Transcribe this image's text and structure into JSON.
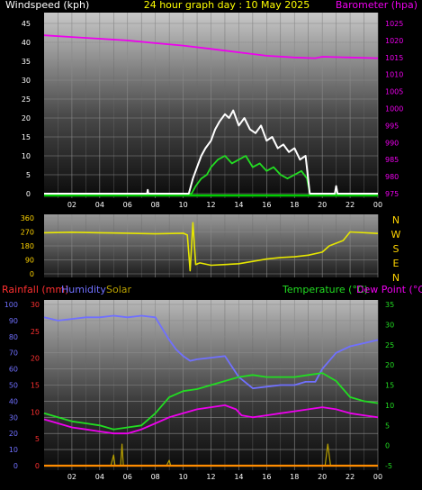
{
  "header": {
    "left_title": "Windspeed (kph)",
    "center_title": "24 hour graph day : 10 May 2025",
    "right_title": "Barometer (hpa)"
  },
  "colors": {
    "windspeed_gust": "#ffffff",
    "windspeed_avg": "#22dd22",
    "barometer": "#ee00ee",
    "wind_dir": "#e6e600",
    "rainfall": "#ff3030",
    "humidity": "#7070ff",
    "solar": "#b8a000",
    "temperature": "#22dd22",
    "dew_point": "#ee00ee",
    "axis_yellow": "#ffd400",
    "baseline_green": "#00cc00",
    "baseline_orange": "#ff8c00"
  },
  "chart_data": [
    {
      "type": "line",
      "x_ticks": [
        "02",
        "04",
        "06",
        "08",
        "10",
        "12",
        "14",
        "16",
        "18",
        "20",
        "22",
        "00"
      ],
      "left_axis": {
        "ticks": [
          0,
          5,
          10,
          15,
          20,
          25,
          30,
          35,
          40,
          45
        ],
        "ylim": [
          0,
          45
        ]
      },
      "right_axis": {
        "ticks": [
          975,
          980,
          985,
          990,
          995,
          1000,
          1005,
          1010,
          1015,
          1020,
          1025
        ],
        "ylim": [
          975,
          1025
        ]
      },
      "series": [
        {
          "key": "barometer",
          "axis": "right",
          "points": [
            [
              0,
              1021.5
            ],
            [
              2,
              1021
            ],
            [
              4,
              1020.5
            ],
            [
              6,
              1020
            ],
            [
              8,
              1019.2
            ],
            [
              10,
              1018.5
            ],
            [
              12,
              1017.5
            ],
            [
              14,
              1016.5
            ],
            [
              16,
              1015.5
            ],
            [
              18,
              1015
            ],
            [
              19.5,
              1014.8
            ],
            [
              20,
              1015.2
            ],
            [
              22,
              1015
            ],
            [
              24,
              1014.8
            ]
          ]
        },
        {
          "key": "windspeed_avg",
          "axis": "left",
          "points": [
            [
              0,
              0
            ],
            [
              10.6,
              0
            ],
            [
              10.9,
              2
            ],
            [
              11.3,
              4
            ],
            [
              11.7,
              5
            ],
            [
              12,
              7
            ],
            [
              12.5,
              9
            ],
            [
              13,
              10
            ],
            [
              13.5,
              8
            ],
            [
              14,
              9
            ],
            [
              14.5,
              10
            ],
            [
              15,
              7
            ],
            [
              15.5,
              8
            ],
            [
              16,
              6
            ],
            [
              16.5,
              7
            ],
            [
              17,
              5
            ],
            [
              17.5,
              4
            ],
            [
              18,
              5
            ],
            [
              18.5,
              6
            ],
            [
              18.9,
              4
            ],
            [
              19.1,
              0
            ],
            [
              24,
              0
            ]
          ]
        },
        {
          "key": "windspeed_gust",
          "axis": "left",
          "points": [
            [
              0,
              0
            ],
            [
              7.4,
              0
            ],
            [
              7.45,
              1
            ],
            [
              7.5,
              0
            ],
            [
              10.4,
              0
            ],
            [
              10.7,
              4
            ],
            [
              11,
              7
            ],
            [
              11.3,
              10
            ],
            [
              11.6,
              12
            ],
            [
              12,
              14
            ],
            [
              12.3,
              17
            ],
            [
              12.6,
              19
            ],
            [
              13,
              21
            ],
            [
              13.3,
              20
            ],
            [
              13.6,
              22
            ],
            [
              14,
              18
            ],
            [
              14.4,
              20
            ],
            [
              14.8,
              17
            ],
            [
              15.2,
              16
            ],
            [
              15.6,
              18
            ],
            [
              16,
              14
            ],
            [
              16.4,
              15
            ],
            [
              16.8,
              12
            ],
            [
              17.2,
              13
            ],
            [
              17.6,
              11
            ],
            [
              18,
              12
            ],
            [
              18.4,
              9
            ],
            [
              18.8,
              10
            ],
            [
              19.1,
              0
            ],
            [
              20.9,
              0
            ],
            [
              21,
              2
            ],
            [
              21.1,
              0
            ],
            [
              24,
              0
            ]
          ]
        }
      ]
    },
    {
      "type": "line",
      "x_ticks": [
        "02",
        "04",
        "06",
        "08",
        "10",
        "12",
        "14",
        "16",
        "18",
        "20",
        "22",
        "00"
      ],
      "left_axis": {
        "ticks": [
          0,
          90,
          180,
          270,
          360
        ],
        "ylim": [
          0,
          360
        ]
      },
      "right_labels": [
        "N",
        "W",
        "S",
        "E",
        "N"
      ],
      "series": [
        {
          "key": "wind_dir",
          "axis": "left",
          "points": [
            [
              0,
              265
            ],
            [
              2,
              268
            ],
            [
              4,
              265
            ],
            [
              6,
              262
            ],
            [
              8,
              258
            ],
            [
              10,
              262
            ],
            [
              10.3,
              250
            ],
            [
              10.5,
              20
            ],
            [
              10.7,
              330
            ],
            [
              10.9,
              60
            ],
            [
              11.2,
              70
            ],
            [
              12,
              55
            ],
            [
              13,
              60
            ],
            [
              14,
              65
            ],
            [
              15,
              80
            ],
            [
              16,
              95
            ],
            [
              17,
              105
            ],
            [
              18,
              110
            ],
            [
              19,
              120
            ],
            [
              20,
              140
            ],
            [
              20.5,
              180
            ],
            [
              21.5,
              215
            ],
            [
              22,
              270
            ],
            [
              24,
              260
            ]
          ]
        }
      ]
    },
    {
      "type": "line",
      "x_ticks": [
        "02",
        "04",
        "06",
        "08",
        "10",
        "12",
        "14",
        "16",
        "18",
        "20",
        "22",
        "00"
      ],
      "left_axis_humidity": {
        "ticks": [
          0,
          10,
          20,
          30,
          40,
          50,
          60,
          70,
          80,
          90,
          100
        ],
        "ylim": [
          0,
          100
        ]
      },
      "left_axis_rain": {
        "ticks": [
          0,
          5,
          10,
          15,
          20,
          25,
          30
        ],
        "ylim": [
          0,
          30
        ]
      },
      "right_axis": {
        "ticks": [
          -5,
          0,
          5,
          10,
          15,
          20,
          25,
          30,
          35
        ],
        "ylim": [
          -5,
          35
        ]
      },
      "legend": {
        "rainfall": "Rainfall (mm)",
        "humidity": "Humidity",
        "solar": "Solar",
        "temperature": "Temperature (°C)",
        "dew_point": "Dew Point (°C)"
      },
      "series": [
        {
          "key": "humidity",
          "axis": "humidity",
          "points": [
            [
              0,
              92
            ],
            [
              1,
              90
            ],
            [
              2,
              91
            ],
            [
              3,
              92
            ],
            [
              4,
              92
            ],
            [
              5,
              93
            ],
            [
              6,
              92
            ],
            [
              7,
              93
            ],
            [
              8,
              92
            ],
            [
              8.5,
              85
            ],
            [
              9,
              78
            ],
            [
              9.5,
              72
            ],
            [
              10,
              68
            ],
            [
              10.5,
              65
            ],
            [
              11,
              66
            ],
            [
              12,
              67
            ],
            [
              13,
              68
            ],
            [
              14,
              55
            ],
            [
              15,
              48
            ],
            [
              16,
              49
            ],
            [
              17,
              50
            ],
            [
              18,
              50
            ],
            [
              18.8,
              52
            ],
            [
              19.5,
              52
            ],
            [
              20,
              60
            ],
            [
              21,
              70
            ],
            [
              22,
              74
            ],
            [
              23,
              76
            ],
            [
              24,
              78
            ]
          ]
        },
        {
          "key": "temperature",
          "axis": "temp",
          "points": [
            [
              0,
              8
            ],
            [
              1,
              7
            ],
            [
              2,
              6
            ],
            [
              3,
              5.5
            ],
            [
              4,
              5
            ],
            [
              5,
              4
            ],
            [
              6,
              4.5
            ],
            [
              7,
              5
            ],
            [
              8,
              8
            ],
            [
              9,
              12
            ],
            [
              10,
              13.5
            ],
            [
              11,
              14
            ],
            [
              12,
              15
            ],
            [
              13,
              16
            ],
            [
              14,
              17
            ],
            [
              15,
              17.5
            ],
            [
              16,
              17
            ],
            [
              17,
              17
            ],
            [
              18,
              17
            ],
            [
              19,
              17.5
            ],
            [
              20,
              18
            ],
            [
              21,
              16
            ],
            [
              22,
              12
            ],
            [
              23,
              11
            ],
            [
              24,
              10.5
            ]
          ]
        },
        {
          "key": "dew_point",
          "axis": "temp",
          "points": [
            [
              0,
              6.5
            ],
            [
              1,
              5.5
            ],
            [
              2,
              4.5
            ],
            [
              3,
              4
            ],
            [
              4,
              3.5
            ],
            [
              5,
              3
            ],
            [
              6,
              3
            ],
            [
              7,
              4
            ],
            [
              8,
              5.5
            ],
            [
              9,
              7
            ],
            [
              10,
              8
            ],
            [
              11,
              9
            ],
            [
              12,
              9.5
            ],
            [
              13,
              10
            ],
            [
              13.8,
              9
            ],
            [
              14.2,
              7.5
            ],
            [
              15,
              7
            ],
            [
              16,
              7.5
            ],
            [
              17,
              8
            ],
            [
              18,
              8.5
            ],
            [
              19,
              9
            ],
            [
              20,
              9.5
            ],
            [
              21,
              9
            ],
            [
              22,
              8
            ],
            [
              23,
              7.5
            ],
            [
              24,
              7
            ]
          ]
        },
        {
          "key": "solar",
          "axis": "rain",
          "points": [
            [
              0,
              0
            ],
            [
              4.8,
              0
            ],
            [
              5,
              2
            ],
            [
              5.1,
              0
            ],
            [
              5.5,
              0
            ],
            [
              5.6,
              4
            ],
            [
              5.7,
              0
            ],
            [
              8.8,
              0
            ],
            [
              9,
              1
            ],
            [
              9.1,
              0
            ],
            [
              20.2,
              0
            ],
            [
              20.4,
              4
            ],
            [
              20.6,
              0
            ],
            [
              24,
              0
            ]
          ]
        },
        {
          "key": "rainfall",
          "axis": "rain",
          "points": [
            [
              0,
              0
            ],
            [
              24,
              0
            ]
          ]
        }
      ]
    }
  ]
}
